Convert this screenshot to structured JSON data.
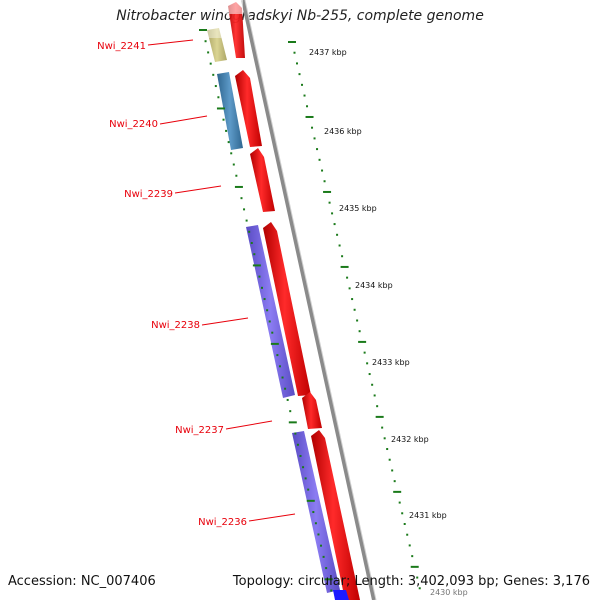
{
  "title": "Nitrobacter winogradskyi Nb-255, complete genome",
  "accession": "Accession: NC_007406",
  "summary": "Topology: circular; Length: 3,402,093 bp; Genes: 3,176",
  "colors": {
    "cds": "#ff0000",
    "backbone": "#888888",
    "tick": "#1a7a1a",
    "label": "#e8000b",
    "cog_olive": "#bdb76b",
    "cog_steel": "#4682b4",
    "cog_slate": "#7b68ee"
  },
  "kbp_ticks": [
    "2437 kbp",
    "2436 kbp",
    "2435 kbp",
    "2434 kbp",
    "2433 kbp",
    "2432 kbp",
    "2431 kbp",
    "2430 kbp"
  ],
  "genes": [
    {
      "name": "Nwi_2241",
      "cog_color": "#bdb76b"
    },
    {
      "name": "Nwi_2240",
      "cog_color": "#4682b4"
    },
    {
      "name": "Nwi_2239",
      "cog_color": ""
    },
    {
      "name": "Nwi_2238",
      "cog_color": "#7b68ee"
    },
    {
      "name": "Nwi_2237",
      "cog_color": ""
    },
    {
      "name": "Nwi_2236",
      "cog_color": "#7b68ee"
    }
  ]
}
